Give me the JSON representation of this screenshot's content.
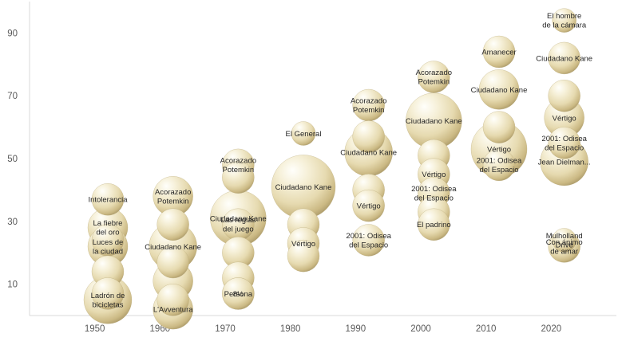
{
  "chart_data": {
    "type": "bubble",
    "xlim": [
      1940,
      2030
    ],
    "ylim": [
      0,
      100
    ],
    "xticks": [
      "1950",
      "1960",
      "1970",
      "1980",
      "1990",
      "2000",
      "2010",
      "2020"
    ],
    "yticks": [
      "10",
      "30",
      "50",
      "70",
      "90"
    ],
    "grid": false,
    "legend": "none",
    "bubble_color": "#EFE6C8",
    "points": [
      {
        "x": 1952,
        "y": 37,
        "size": 3,
        "label": "Intolerancia"
      },
      {
        "x": 1952,
        "y": 28,
        "size": 4,
        "label": "La fiebre del oro"
      },
      {
        "x": 1952,
        "y": 24,
        "size": 3,
        "label": ""
      },
      {
        "x": 1952,
        "y": 22,
        "size": 4,
        "label": "Luces de la ciudad"
      },
      {
        "x": 1952,
        "y": 14,
        "size": 3,
        "label": ""
      },
      {
        "x": 1952,
        "y": 7,
        "size": 3,
        "label": ""
      },
      {
        "x": 1952,
        "y": 5,
        "size": 5,
        "label": "Ladrón de bicicletas"
      },
      {
        "x": 1962,
        "y": 38,
        "size": 4,
        "label": "Acorazado Potemkin"
      },
      {
        "x": 1962,
        "y": 29,
        "size": 3,
        "label": ""
      },
      {
        "x": 1962,
        "y": 22,
        "size": 5,
        "label": "Ciudadano Kane"
      },
      {
        "x": 1962,
        "y": 17,
        "size": 3,
        "label": ""
      },
      {
        "x": 1962,
        "y": 11,
        "size": 4,
        "label": ""
      },
      {
        "x": 1962,
        "y": 5,
        "size": 3,
        "label": ""
      },
      {
        "x": 1962,
        "y": 2,
        "size": 4,
        "label": "L'Avventura"
      },
      {
        "x": 1972,
        "y": 48,
        "size": 3,
        "label": "Acorazado Potemkin"
      },
      {
        "x": 1972,
        "y": 44,
        "size": 3,
        "label": ""
      },
      {
        "x": 1972,
        "y": 31,
        "size": 6,
        "label": "Ciudadano Kane"
      },
      {
        "x": 1972,
        "y": 29,
        "size": 3,
        "label": "Las reglas del juego"
      },
      {
        "x": 1972,
        "y": 20,
        "size": 3,
        "label": ""
      },
      {
        "x": 1972,
        "y": 12,
        "size": 3,
        "label": ""
      },
      {
        "x": 1972,
        "y": 7,
        "size": 3,
        "label": "8½"
      },
      {
        "x": 1972,
        "y": 7,
        "size": 3,
        "label": "Persona"
      },
      {
        "x": 1982,
        "y": 58,
        "size": 2,
        "label": "El General"
      },
      {
        "x": 1982,
        "y": 41,
        "size": 7,
        "label": "Ciudadano Kane"
      },
      {
        "x": 1982,
        "y": 29,
        "size": 3,
        "label": ""
      },
      {
        "x": 1982,
        "y": 23,
        "size": 3,
        "label": "Vértigo"
      },
      {
        "x": 1982,
        "y": 19,
        "size": 3,
        "label": ""
      },
      {
        "x": 1992,
        "y": 67,
        "size": 3,
        "label": "Acorazado Potemkin"
      },
      {
        "x": 1992,
        "y": 57,
        "size": 3,
        "label": ""
      },
      {
        "x": 1992,
        "y": 52,
        "size": 5,
        "label": "Ciudadano Kane"
      },
      {
        "x": 1992,
        "y": 40,
        "size": 3,
        "label": ""
      },
      {
        "x": 1992,
        "y": 35,
        "size": 3,
        "label": "Vértigo"
      },
      {
        "x": 1992,
        "y": 24,
        "size": 3,
        "label": "2001: Odisea del Espacio"
      },
      {
        "x": 2002,
        "y": 76,
        "size": 3,
        "label": "Acorazado Potemkin"
      },
      {
        "x": 2002,
        "y": 62,
        "size": 6,
        "label": "Ciudadano Kane"
      },
      {
        "x": 2002,
        "y": 51,
        "size": 3,
        "label": ""
      },
      {
        "x": 2002,
        "y": 45,
        "size": 3,
        "label": "Vértigo"
      },
      {
        "x": 2002,
        "y": 39,
        "size": 3,
        "label": "2001: Odisea del Espacio"
      },
      {
        "x": 2002,
        "y": 33,
        "size": 3,
        "label": ""
      },
      {
        "x": 2002,
        "y": 29,
        "size": 3,
        "label": "El padrino"
      },
      {
        "x": 2012,
        "y": 84,
        "size": 3,
        "label": "Amanecer"
      },
      {
        "x": 2012,
        "y": 72,
        "size": 4,
        "label": "Ciudadano Kane"
      },
      {
        "x": 2012,
        "y": 60,
        "size": 3,
        "label": ""
      },
      {
        "x": 2012,
        "y": 53,
        "size": 6,
        "label": "Vértigo"
      },
      {
        "x": 2012,
        "y": 48,
        "size": 3,
        "label": "2001: Odisea del Espacio"
      },
      {
        "x": 2022,
        "y": 94,
        "size": 2,
        "label": "El hombre de la cámara"
      },
      {
        "x": 2022,
        "y": 82,
        "size": 3,
        "label": "Ciudadano Kane"
      },
      {
        "x": 2022,
        "y": 70,
        "size": 3,
        "label": ""
      },
      {
        "x": 2022,
        "y": 63,
        "size": 4,
        "label": "Vértigo"
      },
      {
        "x": 2022,
        "y": 55,
        "size": 3,
        "label": "2001: Odisea del Espacio"
      },
      {
        "x": 2022,
        "y": 49,
        "size": 5,
        "label": "Jean Dielman..."
      },
      {
        "x": 2022,
        "y": 24,
        "size": 2,
        "label": "Mulholland Drive"
      },
      {
        "x": 2022,
        "y": 22,
        "size": 3,
        "label": "Con ánimo de amar"
      }
    ]
  }
}
